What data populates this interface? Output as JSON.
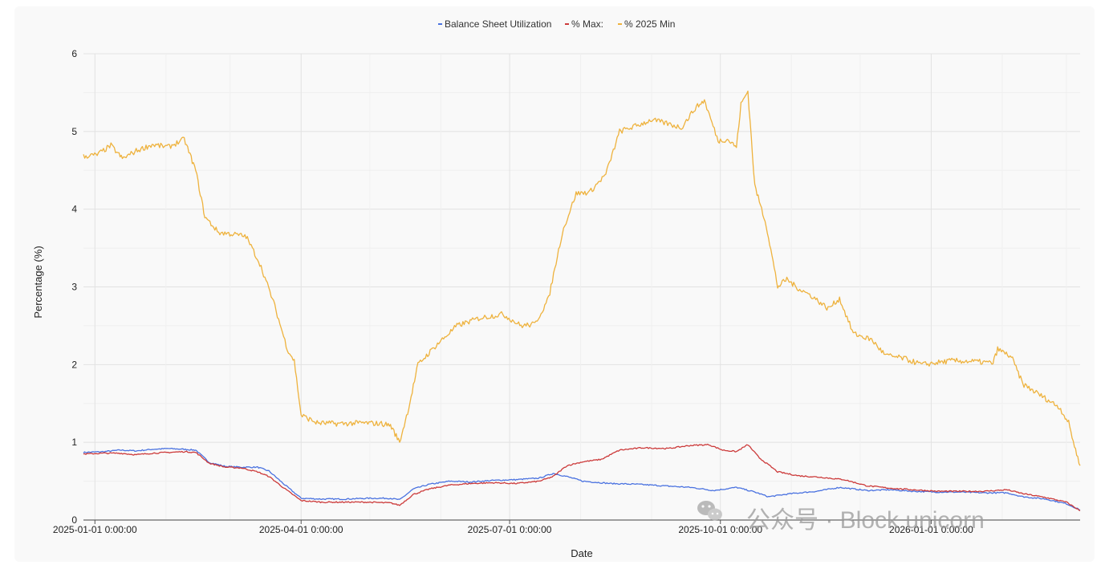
{
  "chart_data": {
    "type": "line",
    "title": "",
    "xlabel": "Date",
    "ylabel": "Percentage (%)",
    "x_ticks": [
      "2025-01-01 0:00:00",
      "2025-04-01 0:00:00",
      "2025-07-01 0:00:00",
      "2025-10-01 0:00:00",
      "2026-01-01 0:00:00"
    ],
    "y_ticks": [
      "0",
      "1",
      "2",
      "3",
      "4",
      "5",
      "6"
    ],
    "xlim": [
      "2024-12-27",
      "2026-03-07"
    ],
    "ylim": [
      0,
      6
    ],
    "grid": true,
    "legend_position": "top-center",
    "series": [
      {
        "name": "Balance Sheet Utilization",
        "color": "#4a72e0",
        "points": [
          [
            "2024-12-27",
            0.87
          ],
          [
            "2025-01-05",
            0.88
          ],
          [
            "2025-01-12",
            0.9
          ],
          [
            "2025-01-19",
            0.89
          ],
          [
            "2025-01-26",
            0.91
          ],
          [
            "2025-02-02",
            0.92
          ],
          [
            "2025-02-09",
            0.91
          ],
          [
            "2025-02-14",
            0.9
          ],
          [
            "2025-02-20",
            0.74
          ],
          [
            "2025-02-27",
            0.69
          ],
          [
            "2025-03-06",
            0.68
          ],
          [
            "2025-03-13",
            0.68
          ],
          [
            "2025-03-18",
            0.63
          ],
          [
            "2025-03-25",
            0.45
          ],
          [
            "2025-04-01",
            0.28
          ],
          [
            "2025-04-10",
            0.27
          ],
          [
            "2025-04-20",
            0.27
          ],
          [
            "2025-04-30",
            0.28
          ],
          [
            "2025-05-10",
            0.28
          ],
          [
            "2025-05-14",
            0.26
          ],
          [
            "2025-05-20",
            0.4
          ],
          [
            "2025-05-27",
            0.46
          ],
          [
            "2025-06-05",
            0.5
          ],
          [
            "2025-06-14",
            0.49
          ],
          [
            "2025-06-24",
            0.51
          ],
          [
            "2025-07-04",
            0.52
          ],
          [
            "2025-07-14",
            0.54
          ],
          [
            "2025-07-20",
            0.6
          ],
          [
            "2025-07-26",
            0.56
          ],
          [
            "2025-08-02",
            0.5
          ],
          [
            "2025-08-14",
            0.47
          ],
          [
            "2025-08-26",
            0.46
          ],
          [
            "2025-09-06",
            0.44
          ],
          [
            "2025-09-18",
            0.42
          ],
          [
            "2025-09-28",
            0.38
          ],
          [
            "2025-10-08",
            0.42
          ],
          [
            "2025-10-16",
            0.36
          ],
          [
            "2025-10-22",
            0.3
          ],
          [
            "2025-11-01",
            0.34
          ],
          [
            "2025-11-12",
            0.37
          ],
          [
            "2025-11-22",
            0.42
          ],
          [
            "2025-12-04",
            0.38
          ],
          [
            "2025-12-14",
            0.39
          ],
          [
            "2025-12-24",
            0.37
          ],
          [
            "2026-01-04",
            0.36
          ],
          [
            "2026-01-14",
            0.36
          ],
          [
            "2026-01-24",
            0.35
          ],
          [
            "2026-02-03",
            0.35
          ],
          [
            "2026-02-10",
            0.3
          ],
          [
            "2026-02-20",
            0.27
          ],
          [
            "2026-03-01",
            0.21
          ],
          [
            "2026-03-07",
            0.13
          ]
        ]
      },
      {
        "name": "% Max:",
        "color": "#cc3a3a",
        "points": [
          [
            "2024-12-27",
            0.85
          ],
          [
            "2025-01-05",
            0.86
          ],
          [
            "2025-01-12",
            0.86
          ],
          [
            "2025-01-19",
            0.84
          ],
          [
            "2025-01-26",
            0.86
          ],
          [
            "2025-02-02",
            0.87
          ],
          [
            "2025-02-09",
            0.88
          ],
          [
            "2025-02-14",
            0.87
          ],
          [
            "2025-02-20",
            0.73
          ],
          [
            "2025-02-27",
            0.68
          ],
          [
            "2025-03-06",
            0.67
          ],
          [
            "2025-03-13",
            0.62
          ],
          [
            "2025-03-18",
            0.56
          ],
          [
            "2025-03-25",
            0.4
          ],
          [
            "2025-04-01",
            0.25
          ],
          [
            "2025-04-10",
            0.23
          ],
          [
            "2025-04-20",
            0.23
          ],
          [
            "2025-04-30",
            0.23
          ],
          [
            "2025-05-10",
            0.22
          ],
          [
            "2025-05-14",
            0.19
          ],
          [
            "2025-05-20",
            0.33
          ],
          [
            "2025-05-27",
            0.4
          ],
          [
            "2025-06-05",
            0.45
          ],
          [
            "2025-06-14",
            0.47
          ],
          [
            "2025-06-24",
            0.48
          ],
          [
            "2025-07-04",
            0.47
          ],
          [
            "2025-07-14",
            0.5
          ],
          [
            "2025-07-20",
            0.56
          ],
          [
            "2025-07-26",
            0.7
          ],
          [
            "2025-08-02",
            0.75
          ],
          [
            "2025-08-10",
            0.78
          ],
          [
            "2025-08-18",
            0.9
          ],
          [
            "2025-08-28",
            0.93
          ],
          [
            "2025-09-08",
            0.92
          ],
          [
            "2025-09-18",
            0.96
          ],
          [
            "2025-09-26",
            0.97
          ],
          [
            "2025-10-02",
            0.9
          ],
          [
            "2025-10-08",
            0.88
          ],
          [
            "2025-10-13",
            0.97
          ],
          [
            "2025-10-18",
            0.8
          ],
          [
            "2025-10-26",
            0.62
          ],
          [
            "2025-11-04",
            0.57
          ],
          [
            "2025-11-14",
            0.55
          ],
          [
            "2025-11-24",
            0.52
          ],
          [
            "2025-12-04",
            0.44
          ],
          [
            "2025-12-14",
            0.41
          ],
          [
            "2025-12-24",
            0.39
          ],
          [
            "2026-01-04",
            0.37
          ],
          [
            "2026-01-14",
            0.37
          ],
          [
            "2026-01-24",
            0.37
          ],
          [
            "2026-02-03",
            0.39
          ],
          [
            "2026-02-10",
            0.34
          ],
          [
            "2026-02-20",
            0.29
          ],
          [
            "2026-03-01",
            0.23
          ],
          [
            "2026-03-07",
            0.12
          ]
        ]
      },
      {
        "name": "% 2025 Min",
        "color": "#eeb23d",
        "points": [
          [
            "2024-12-27",
            4.68
          ],
          [
            "2025-01-02",
            4.7
          ],
          [
            "2025-01-08",
            4.82
          ],
          [
            "2025-01-13",
            4.65
          ],
          [
            "2025-01-19",
            4.75
          ],
          [
            "2025-01-26",
            4.83
          ],
          [
            "2025-02-02",
            4.8
          ],
          [
            "2025-02-09",
            4.9
          ],
          [
            "2025-02-14",
            4.5
          ],
          [
            "2025-02-18",
            3.9
          ],
          [
            "2025-02-24",
            3.7
          ],
          [
            "2025-03-02",
            3.68
          ],
          [
            "2025-03-08",
            3.65
          ],
          [
            "2025-03-14",
            3.3
          ],
          [
            "2025-03-20",
            2.8
          ],
          [
            "2025-03-26",
            2.2
          ],
          [
            "2025-03-29",
            2.05
          ],
          [
            "2025-04-01",
            1.35
          ],
          [
            "2025-04-08",
            1.25
          ],
          [
            "2025-04-18",
            1.24
          ],
          [
            "2025-04-28",
            1.25
          ],
          [
            "2025-05-06",
            1.24
          ],
          [
            "2025-05-10",
            1.22
          ],
          [
            "2025-05-14",
            1.0
          ],
          [
            "2025-05-18",
            1.45
          ],
          [
            "2025-05-22",
            2.0
          ],
          [
            "2025-05-30",
            2.25
          ],
          [
            "2025-06-08",
            2.5
          ],
          [
            "2025-06-18",
            2.6
          ],
          [
            "2025-06-28",
            2.65
          ],
          [
            "2025-07-06",
            2.5
          ],
          [
            "2025-07-12",
            2.52
          ],
          [
            "2025-07-18",
            2.85
          ],
          [
            "2025-07-24",
            3.7
          ],
          [
            "2025-07-30",
            4.2
          ],
          [
            "2025-08-05",
            4.22
          ],
          [
            "2025-08-12",
            4.45
          ],
          [
            "2025-08-18",
            5.0
          ],
          [
            "2025-08-26",
            5.08
          ],
          [
            "2025-09-01",
            5.15
          ],
          [
            "2025-09-08",
            5.1
          ],
          [
            "2025-09-14",
            5.05
          ],
          [
            "2025-09-20",
            5.3
          ],
          [
            "2025-09-24",
            5.4
          ],
          [
            "2025-09-30",
            4.88
          ],
          [
            "2025-10-04",
            4.9
          ],
          [
            "2025-10-08",
            4.8
          ],
          [
            "2025-10-10",
            5.35
          ],
          [
            "2025-10-13",
            5.52
          ],
          [
            "2025-10-16",
            4.3
          ],
          [
            "2025-10-21",
            3.8
          ],
          [
            "2025-10-26",
            3.0
          ],
          [
            "2025-10-30",
            3.1
          ],
          [
            "2025-11-03",
            3.0
          ],
          [
            "2025-11-10",
            2.88
          ],
          [
            "2025-11-17",
            2.72
          ],
          [
            "2025-11-22",
            2.85
          ],
          [
            "2025-11-28",
            2.4
          ],
          [
            "2025-12-06",
            2.32
          ],
          [
            "2025-12-12",
            2.12
          ],
          [
            "2025-12-20",
            2.08
          ],
          [
            "2025-12-28",
            2.0
          ],
          [
            "2026-01-10",
            2.05
          ],
          [
            "2026-01-20",
            2.04
          ],
          [
            "2026-01-28",
            2.02
          ],
          [
            "2026-01-30",
            2.2
          ],
          [
            "2026-02-05",
            2.1
          ],
          [
            "2026-02-10",
            1.75
          ],
          [
            "2026-02-18",
            1.6
          ],
          [
            "2026-02-26",
            1.45
          ],
          [
            "2026-03-02",
            1.25
          ],
          [
            "2026-03-05",
            0.9
          ],
          [
            "2026-03-07",
            0.7
          ]
        ]
      }
    ]
  },
  "watermark": {
    "icon": "wechat-icon",
    "text": "公众号 · Block unicorn"
  }
}
